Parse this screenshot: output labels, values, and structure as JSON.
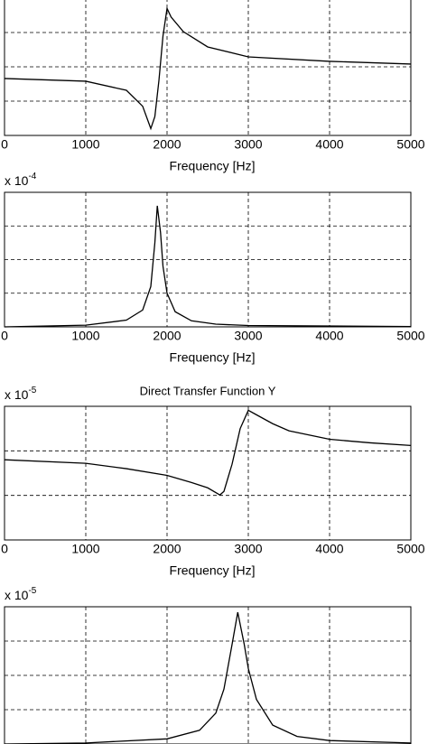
{
  "chart_data": [
    {
      "type": "line",
      "xlabel": "Frequency [Hz]",
      "x": [
        0,
        1000,
        1500,
        1700,
        1800,
        1850,
        1900,
        1950,
        2000,
        2050,
        2200,
        2500,
        3000,
        4000,
        5000
      ],
      "series": [
        {
          "color": "#000000",
          "values": [
            -0.68,
            -0.84,
            -1.37,
            -2.3,
            -3.6,
            -2.9,
            -0.8,
            1.8,
            3.4,
            2.9,
            2.05,
            1.16,
            0.58,
            0.32,
            0.16
          ]
        }
      ],
      "xlim": [
        0,
        5000
      ],
      "xticks": [
        0,
        1000,
        2000,
        3000,
        4000,
        5000
      ],
      "ylim": [
        -4,
        4
      ],
      "yticks": [
        -4,
        -2,
        0,
        2,
        4
      ],
      "grid": true
    },
    {
      "type": "line",
      "xlabel": "Frequency [Hz]",
      "y_multiplier": "x 10",
      "y_exponent": "-4",
      "x": [
        0,
        1000,
        1500,
        1700,
        1800,
        1850,
        1880,
        1920,
        1950,
        2000,
        2100,
        2300,
        2600,
        3000,
        5000
      ],
      "series": [
        {
          "color": "#000000",
          "values": [
            0.0,
            0.05,
            0.2,
            0.5,
            1.2,
            2.5,
            3.6,
            2.8,
            1.8,
            1.0,
            0.45,
            0.18,
            0.08,
            0.04,
            0.01
          ]
        }
      ],
      "xlim": [
        0,
        5000
      ],
      "xticks": [
        0,
        1000,
        2000,
        3000,
        4000,
        5000
      ],
      "ylim": [
        0,
        4
      ],
      "yticks": [
        0,
        1,
        2,
        3,
        4
      ],
      "grid": true
    },
    {
      "type": "line",
      "title": "Direct Transfer Function Y",
      "xlabel": "Frequency [Hz]",
      "y_multiplier": "x 10",
      "y_exponent": "-5",
      "x": [
        0,
        1000,
        1500,
        2000,
        2300,
        2500,
        2650,
        2700,
        2800,
        2900,
        3000,
        3100,
        3300,
        3500,
        4000,
        4500,
        5000
      ],
      "series": [
        {
          "color": "#000000",
          "values": [
            -0.2,
            -0.28,
            -0.4,
            -0.55,
            -0.71,
            -0.83,
            -0.99,
            -0.91,
            -0.3,
            0.5,
            0.91,
            0.81,
            0.61,
            0.45,
            0.26,
            0.18,
            0.12
          ]
        }
      ],
      "xlim": [
        0,
        5000
      ],
      "xticks": [
        0,
        1000,
        2000,
        3000,
        4000,
        5000
      ],
      "ylim": [
        -2,
        1
      ],
      "yticks": [
        -2,
        -1,
        0,
        1
      ],
      "grid": true
    },
    {
      "type": "line",
      "y_multiplier": "x 10",
      "y_exponent": "-5",
      "x": [
        0,
        1000,
        2000,
        2400,
        2600,
        2700,
        2800,
        2870,
        2950,
        3000,
        3100,
        3300,
        3600,
        4000,
        5000
      ],
      "series": [
        {
          "color": "#000000",
          "values": [
            0.0,
            0.03,
            0.15,
            0.4,
            0.9,
            1.6,
            2.9,
            3.84,
            2.9,
            2.2,
            1.3,
            0.55,
            0.22,
            0.1,
            0.03
          ]
        }
      ],
      "xlim": [
        0,
        5000
      ],
      "xticks": [
        0,
        1000,
        2000,
        3000,
        4000,
        5000
      ],
      "ylim": [
        0,
        4
      ],
      "yticks": [
        0,
        1,
        2,
        3,
        4
      ],
      "grid": true
    }
  ]
}
